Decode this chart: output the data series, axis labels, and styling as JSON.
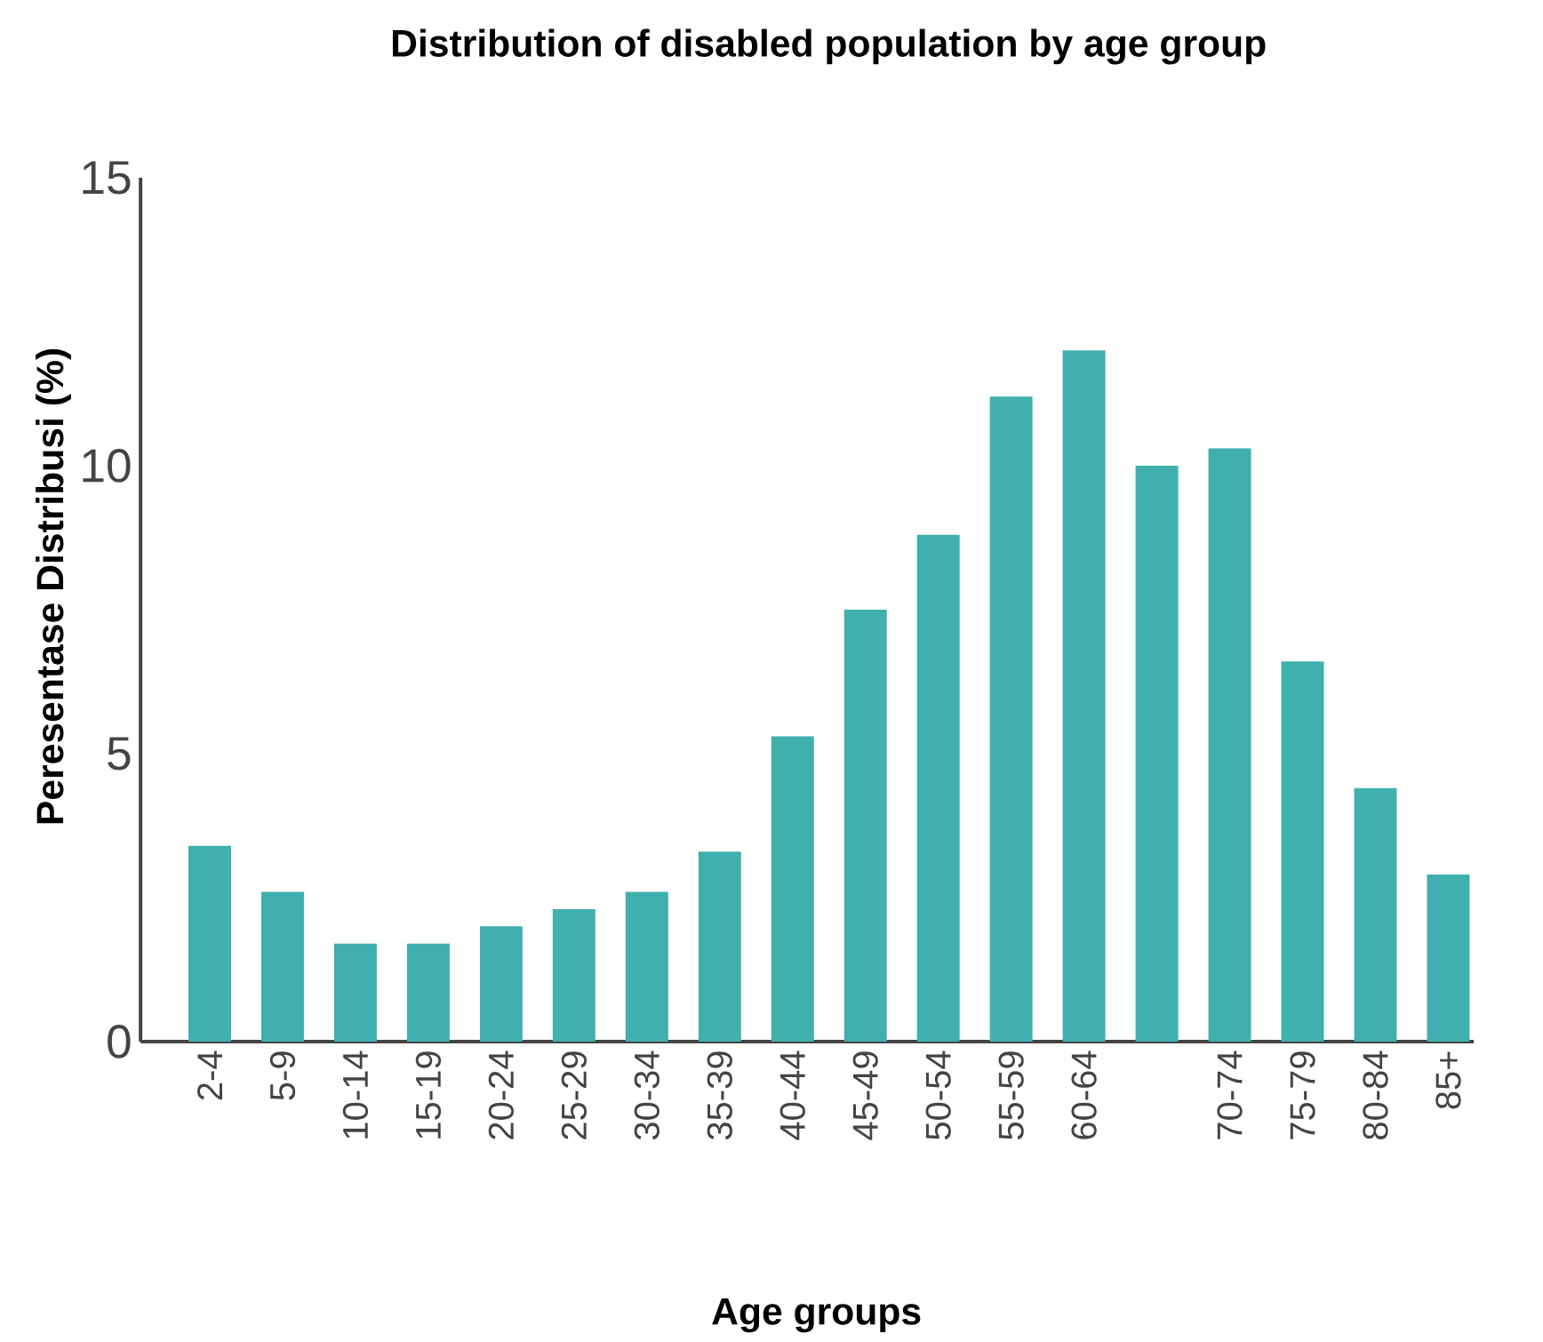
{
  "chart_data": {
    "type": "bar",
    "title": "Distribution of disabled population by age group",
    "xlabel": "Age groups",
    "ylabel": "Peresentase Distribusi (%)",
    "categories": [
      "2-4",
      "5-9",
      "10-14",
      "15-19",
      "20-24",
      "25-29",
      "30-34",
      "35-39",
      "40-44",
      "45-49",
      "50-54",
      "55-59",
      "60-64",
      null,
      "70-74",
      "75-79",
      "80-84",
      "85+"
    ],
    "values": [
      3.4,
      2.6,
      1.7,
      1.7,
      2.0,
      2.3,
      2.6,
      3.3,
      5.3,
      7.5,
      8.8,
      11.2,
      12.0,
      10.0,
      10.3,
      6.6,
      4.4,
      2.9
    ],
    "color": "#3fb0ae",
    "ylim": [
      0,
      15
    ],
    "yticks": [
      0,
      5,
      10,
      15
    ],
    "grid": false
  }
}
